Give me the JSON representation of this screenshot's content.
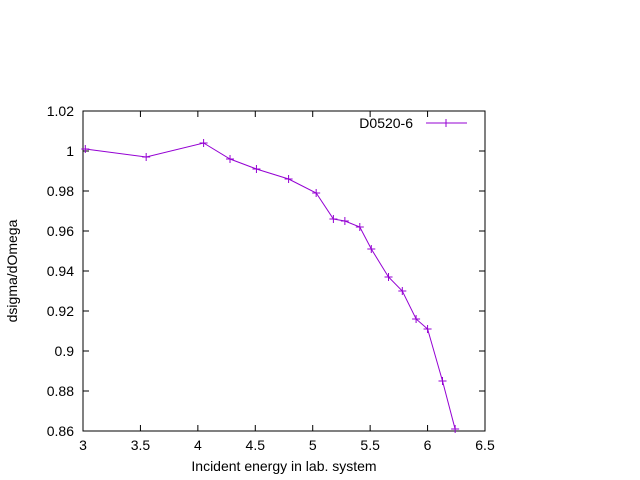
{
  "chart_data": {
    "type": "line",
    "title": "",
    "xlabel": "Incident energy in lab. system",
    "ylabel": "dsigma/dOmega",
    "xlim": [
      3,
      6.5
    ],
    "ylim": [
      0.86,
      1.02
    ],
    "xticks": [
      3,
      3.5,
      4,
      4.5,
      5,
      5.5,
      6,
      6.5
    ],
    "xtick_labels": [
      "3",
      "3.5",
      "4",
      "4.5",
      "5",
      "5.5",
      "6",
      "6.5"
    ],
    "yticks": [
      0.86,
      0.88,
      0.9,
      0.92,
      0.94,
      0.96,
      0.98,
      1.0,
      1.02
    ],
    "ytick_labels": [
      "0.86",
      "0.88",
      "0.9",
      "0.92",
      "0.94",
      "0.96",
      "0.98",
      "1",
      "1.02"
    ],
    "grid": false,
    "legend_position": "top-right",
    "series": [
      {
        "name": "D0520-6",
        "color": "#9400d3",
        "marker": "plus",
        "x": [
          3.02,
          3.55,
          4.05,
          4.28,
          4.51,
          4.79,
          5.03,
          5.18,
          5.28,
          5.41,
          5.51,
          5.66,
          5.78,
          5.9,
          6.0,
          6.13,
          6.24
        ],
        "y": [
          1.001,
          0.997,
          1.004,
          0.996,
          0.991,
          0.986,
          0.979,
          0.966,
          0.965,
          0.962,
          0.951,
          0.937,
          0.93,
          0.916,
          0.911,
          0.885,
          0.861
        ]
      }
    ]
  }
}
